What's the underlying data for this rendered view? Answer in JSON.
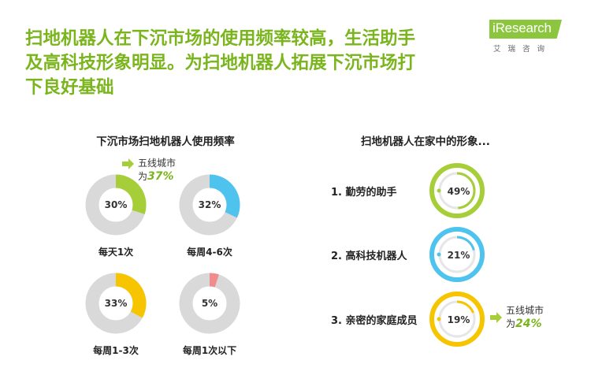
{
  "header": {
    "title_line1": "扫地机器人在下沉市场的使用频率较高，生活助手",
    "title_line2": "及高科技形象明显。为扫地机器人拓展下沉市场打",
    "title_line3": "下良好基础",
    "logo_main": "iResearch",
    "logo_sub": "艾瑞咨询"
  },
  "colors": {
    "accent_green": "#7ab51d",
    "donut_green": "#a6ce39",
    "donut_blue": "#4ec3ee",
    "donut_yellow": "#f7c500",
    "donut_pink": "#f08c8c",
    "track_gray": "#d9d9d9"
  },
  "chart_data": [
    {
      "type": "pie",
      "title": "下沉市场扫地机器人使用频率",
      "slices": [
        {
          "label": "每天1次",
          "value": 30,
          "display": "30%",
          "color": "#a6ce39"
        },
        {
          "label": "每周4-6次",
          "value": 32,
          "display": "32%",
          "color": "#4ec3ee"
        },
        {
          "label": "每周1-3次",
          "value": 33,
          "display": "33%",
          "color": "#f7c500"
        },
        {
          "label": "每周1次以下",
          "value": 5,
          "display": "5%",
          "color": "#f08c8c"
        }
      ],
      "annotation": {
        "line1": "五线城市",
        "prefix": "为",
        "value": "37%"
      }
    },
    {
      "type": "pie",
      "title": "扫地机器人在家中的形象...",
      "items": [
        {
          "label": "1. 勤劳的助手",
          "value": 49,
          "display": "49%",
          "color": "#a6ce39"
        },
        {
          "label": "2. 高科技机器人",
          "value": 21,
          "display": "21%",
          "color": "#4ec3ee"
        },
        {
          "label": "3. 亲密的家庭成员",
          "value": 19,
          "display": "19%",
          "color": "#f7c500"
        }
      ],
      "annotation": {
        "line1": "五线城市",
        "prefix": "为",
        "value": "24%"
      }
    }
  ]
}
